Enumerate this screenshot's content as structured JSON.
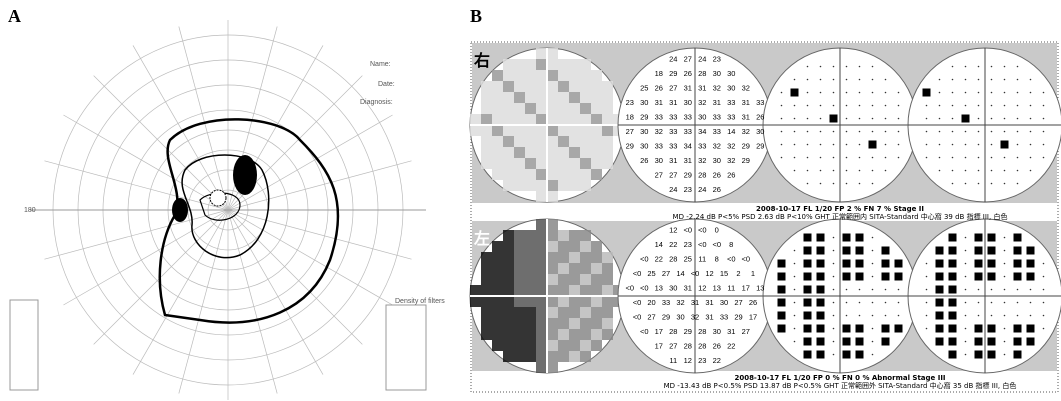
{
  "panel_a": {
    "label": "A",
    "name": "Name:",
    "date": "Date:",
    "diagnosis": "Diagnosis:",
    "density": "Density of filters",
    "angle_left": "180"
  },
  "panel_b": {
    "label": "B",
    "right_eye": {
      "label": "右",
      "rows": [
        [
          "24",
          "27",
          "24",
          "23"
        ],
        [
          "18",
          "29",
          "26",
          "28",
          "30",
          "30"
        ],
        [
          "25",
          "26",
          "27",
          "31",
          "31",
          "32",
          "30",
          "32"
        ],
        [
          "23",
          "30",
          "31",
          "31",
          "30",
          "32",
          "31",
          "33",
          "31",
          "33"
        ],
        [
          "18",
          "29",
          "33",
          "33",
          "33",
          "30",
          "33",
          "33",
          "31",
          "26"
        ],
        [
          "27",
          "30",
          "32",
          "33",
          "33",
          "34",
          "33",
          "14",
          "32",
          "30"
        ],
        [
          "29",
          "30",
          "33",
          "33",
          "34",
          "33",
          "32",
          "32",
          "29",
          "29"
        ],
        [
          "26",
          "30",
          "31",
          "31",
          "32",
          "30",
          "32",
          "29"
        ],
        [
          "27",
          "27",
          "29",
          "28",
          "26",
          "26"
        ],
        [
          "24",
          "23",
          "24",
          "26"
        ]
      ],
      "stats": [
        "2008-10-17  FL 1/20  FP 2 %  FN 7 %     Stage II",
        "MD -2.24 dB  P<5%  PSD 2.63 dB  P<10%  GHT 正常範囲内  SITA-Standard  中心窩 39 dB  指標 III, 白色"
      ]
    },
    "left_eye": {
      "label": "左",
      "rows": [
        [
          "12",
          "<0",
          "<0",
          "0"
        ],
        [
          "14",
          "22",
          "23",
          "<0",
          "<0",
          "8"
        ],
        [
          "<0",
          "22",
          "28",
          "25",
          "11",
          "8",
          "<0",
          "<0"
        ],
        [
          "<0",
          "25",
          "27",
          "14",
          "<0",
          "12",
          "15",
          "2",
          "1"
        ],
        [
          "<0",
          "<0",
          "13",
          "30",
          "31",
          "12",
          "13",
          "11",
          "17",
          "13"
        ],
        [
          "<0",
          "20",
          "33",
          "32",
          "31",
          "31",
          "30",
          "27",
          "26"
        ],
        [
          "<0",
          "27",
          "29",
          "30",
          "32",
          "31",
          "33",
          "29",
          "17"
        ],
        [
          "<0",
          "17",
          "28",
          "29",
          "28",
          "30",
          "31",
          "27"
        ],
        [
          "17",
          "27",
          "28",
          "28",
          "26",
          "22"
        ],
        [
          "11",
          "12",
          "23",
          "22"
        ]
      ],
      "stats": [
        "2008-10-17  FL 1/20  FP 0 %  FN 0 %   Abnormal   Stage III",
        "MD -13.43 dB  P<0.5%  PSD 13.87 dB  P<0.5%  GHT 正常範囲外  SITA-Standard  中心窩 35 dB  指標 III, 白色"
      ]
    }
  }
}
